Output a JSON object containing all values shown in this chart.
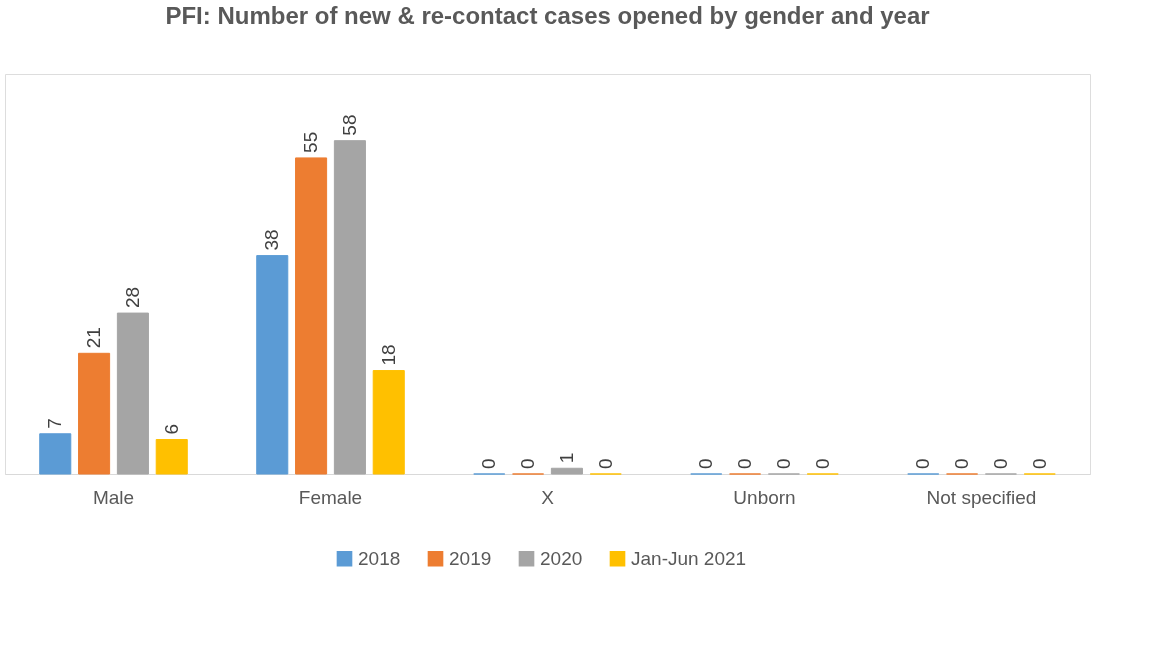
{
  "chart_data": {
    "type": "bar",
    "title": "PFI: Number of new & re-contact cases opened by gender and year",
    "categories": [
      "Male",
      "Female",
      "X",
      "Unborn",
      "Not specified"
    ],
    "series": [
      {
        "name": "2018",
        "color": "#5b9bd5",
        "values": [
          7,
          38,
          0,
          0,
          0
        ]
      },
      {
        "name": "2019",
        "color": "#ed7d31",
        "values": [
          21,
          55,
          0,
          0,
          0
        ]
      },
      {
        "name": "2020",
        "color": "#a5a5a5",
        "values": [
          28,
          58,
          1,
          0,
          0
        ]
      },
      {
        "name": "Jan-Jun 2021",
        "color": "#ffc000",
        "values": [
          6,
          18,
          0,
          0,
          0
        ]
      }
    ],
    "data_labels": true,
    "legend": "bottom",
    "grid": false,
    "tick_labels": "x"
  }
}
